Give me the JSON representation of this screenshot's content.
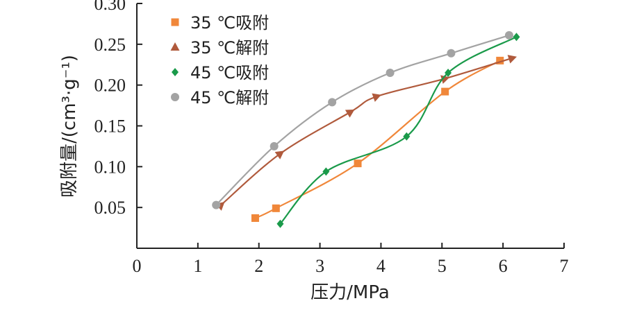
{
  "chart_data": {
    "type": "line",
    "xlabel": "压力/MPa",
    "ylabel": "吸附量/(cm³·g⁻¹)",
    "xlim": [
      0,
      7
    ],
    "ylim": [
      0,
      0.3
    ],
    "x_ticks": [
      "0",
      "1",
      "2",
      "3",
      "4",
      "5",
      "6",
      "7"
    ],
    "y_ticks": [
      "0.05",
      "0.10",
      "0.15",
      "0.20",
      "0.25",
      "0.30"
    ],
    "grid": false,
    "legend_position": "top-left",
    "series": [
      {
        "name": "35 ℃吸附",
        "color": "#f0873a",
        "marker": "square",
        "x": [
          1.94,
          2.28,
          3.62,
          5.05,
          5.95
        ],
        "y": [
          0.037,
          0.049,
          0.104,
          0.192,
          0.23
        ]
      },
      {
        "name": "35 ℃解附",
        "color": "#b05a3c",
        "marker": "triangle",
        "x": [
          1.38,
          2.35,
          3.5,
          3.93,
          5.05,
          6.15
        ],
        "y": [
          0.053,
          0.116,
          0.167,
          0.186,
          0.208,
          0.233
        ]
      },
      {
        "name": "45 ℃吸附",
        "color": "#1a9a4a",
        "marker": "diamond",
        "x": [
          2.35,
          3.1,
          4.42,
          5.1,
          6.22
        ],
        "y": [
          0.03,
          0.094,
          0.137,
          0.215,
          0.259
        ]
      },
      {
        "name": "45 ℃解附",
        "color": "#a3a3a3",
        "marker": "circle",
        "x": [
          1.3,
          2.25,
          3.2,
          4.15,
          5.15,
          6.1
        ],
        "y": [
          0.053,
          0.125,
          0.179,
          0.215,
          0.239,
          0.261
        ]
      }
    ]
  }
}
